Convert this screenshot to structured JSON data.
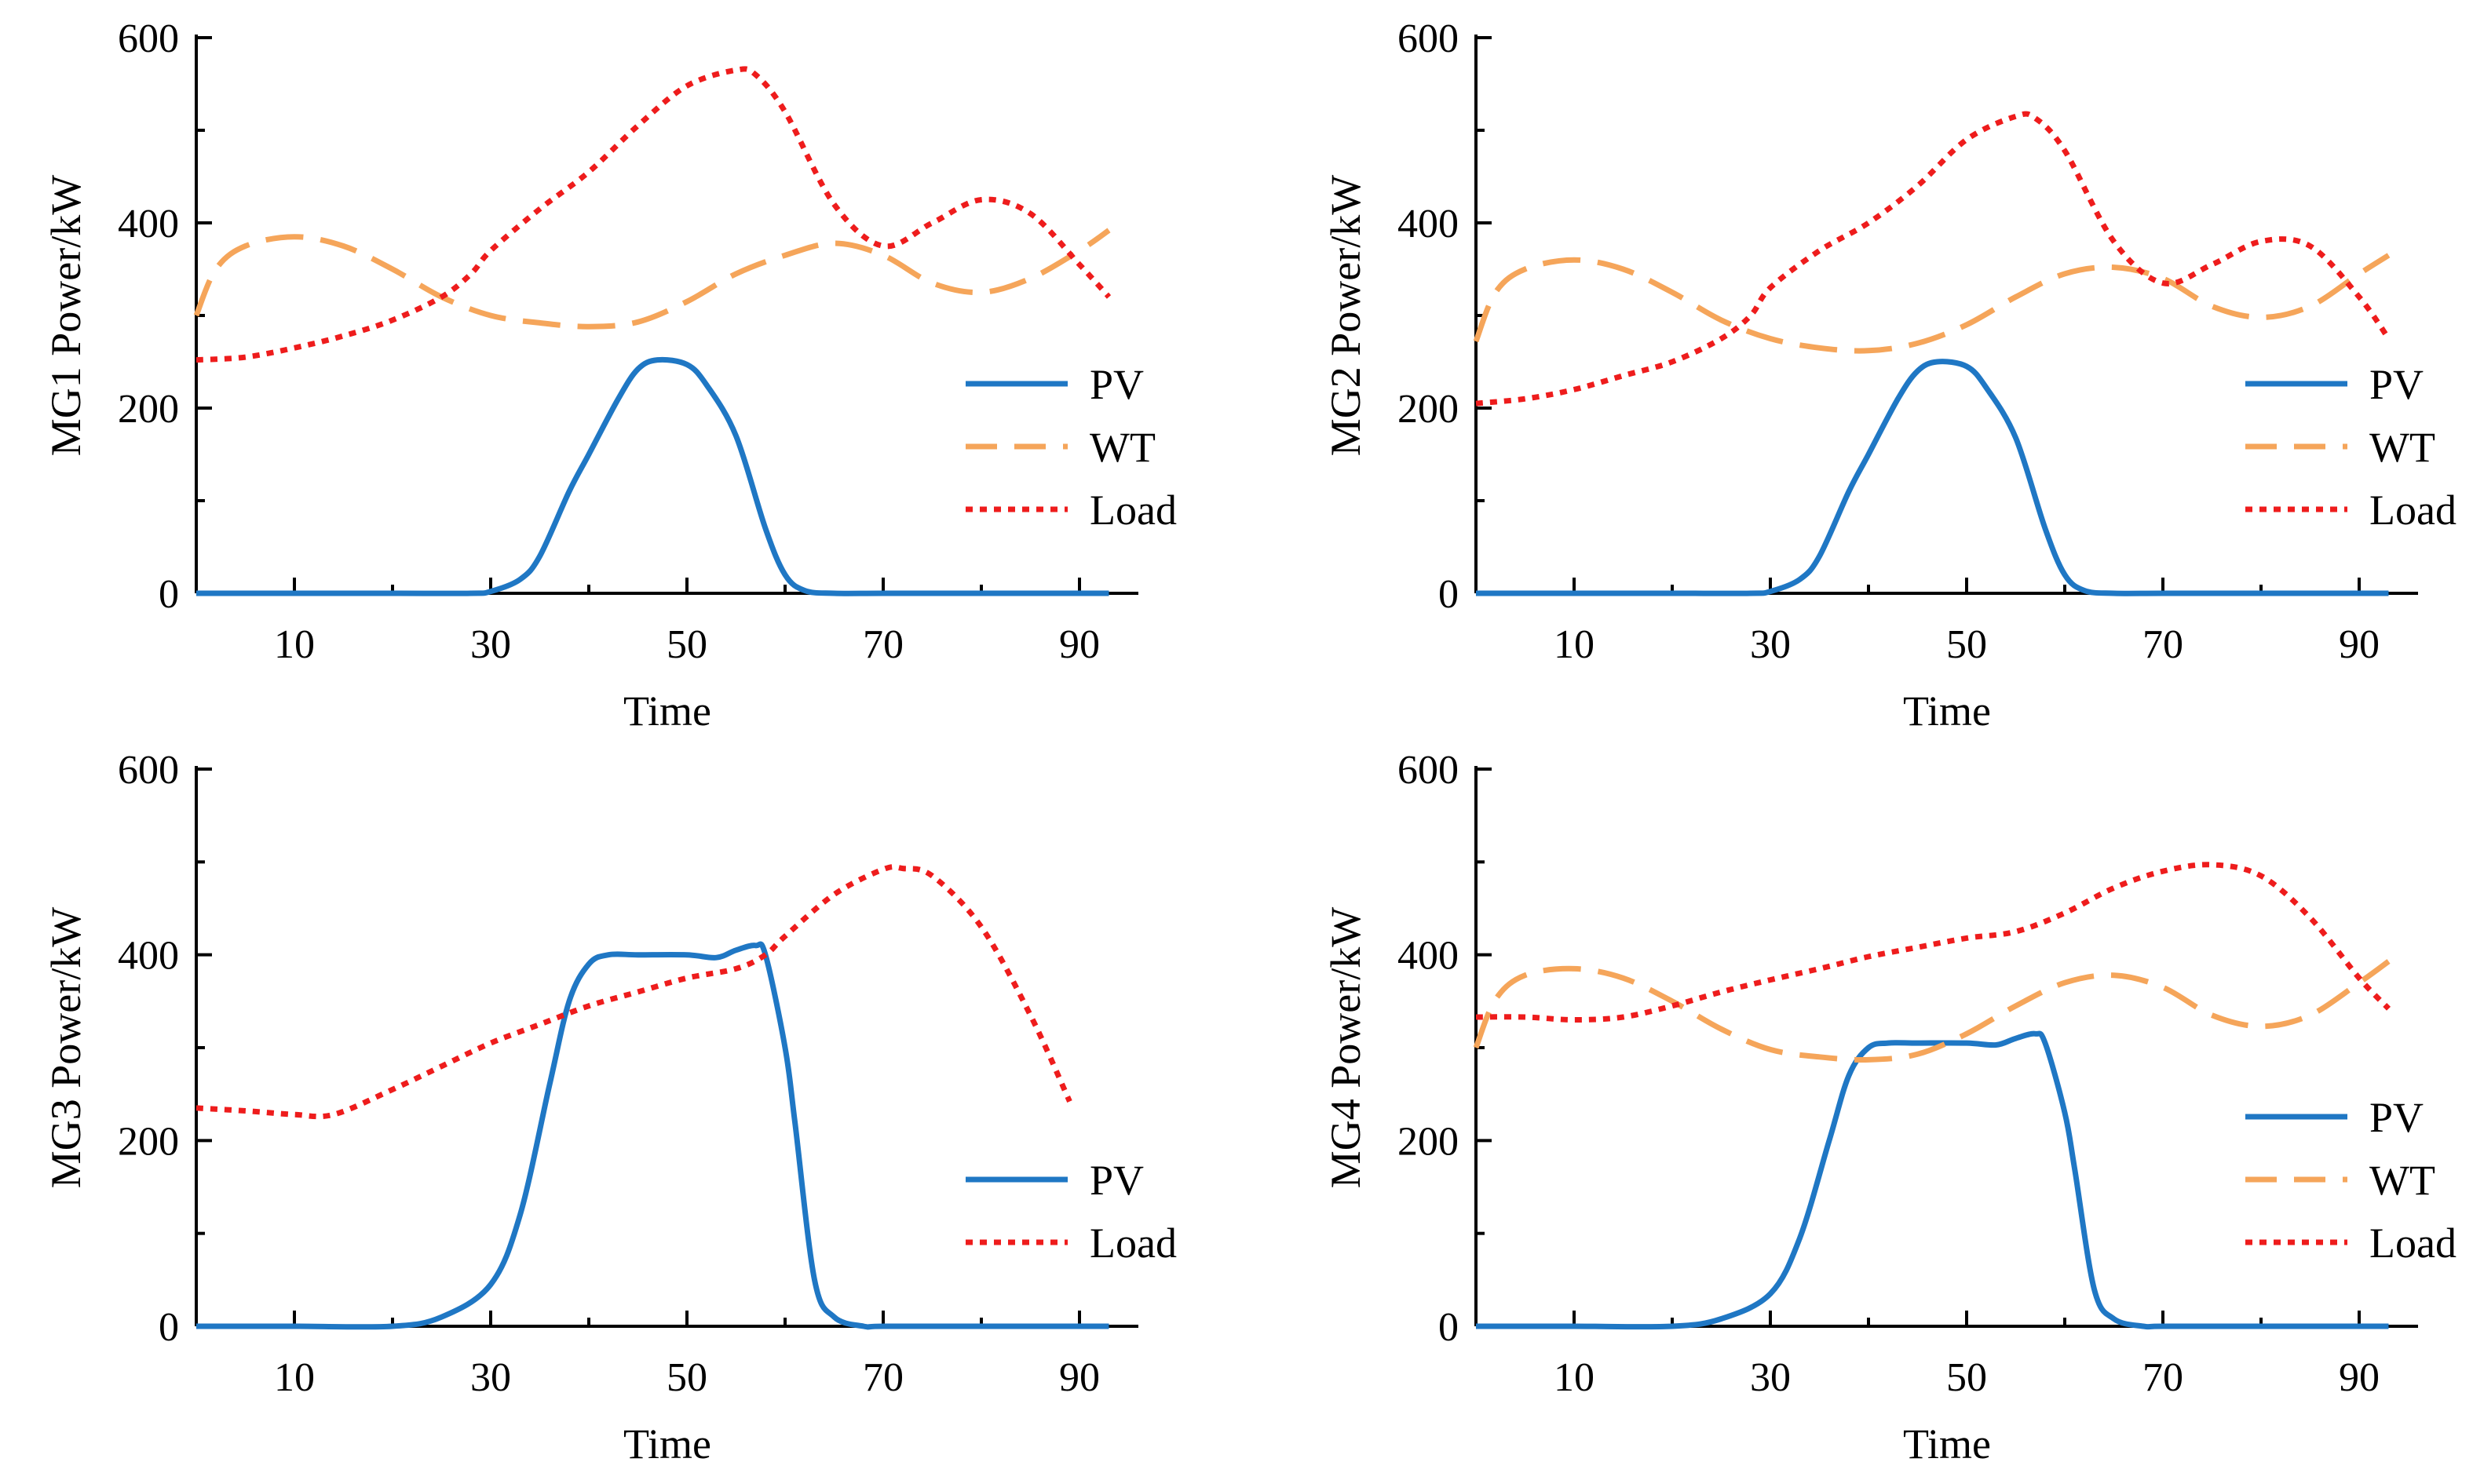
{
  "figure": {
    "panel_count": 4
  },
  "chart_data": [
    {
      "type": "line",
      "title": "",
      "xlabel": "Time",
      "ylabel": "MG1 Power/kW",
      "xlim": [
        0,
        96
      ],
      "ylim": [
        0,
        600
      ],
      "xticks": [
        10,
        30,
        50,
        70,
        90
      ],
      "yticks": [
        0,
        200,
        400,
        600
      ],
      "legend_position": "right",
      "series": [
        {
          "name": "PV",
          "color": "#1f77c4",
          "style": "solid",
          "x": [
            0,
            10,
            20,
            28,
            30,
            33,
            35,
            38,
            40,
            43,
            45,
            47,
            50,
            52,
            55,
            58,
            60,
            62,
            65,
            70,
            80,
            93
          ],
          "y": [
            0,
            0,
            0,
            0,
            2,
            15,
            40,
            110,
            150,
            210,
            242,
            252,
            247,
            225,
            170,
            70,
            20,
            3,
            0,
            0,
            0,
            0
          ]
        },
        {
          "name": "WT",
          "color": "#f5a55a",
          "style": "dash",
          "x": [
            0,
            2,
            5,
            10,
            15,
            20,
            25,
            30,
            35,
            40,
            45,
            50,
            55,
            60,
            65,
            70,
            75,
            80,
            85,
            90,
            93
          ],
          "y": [
            300,
            350,
            375,
            385,
            375,
            350,
            320,
            300,
            292,
            288,
            293,
            315,
            345,
            365,
            378,
            365,
            335,
            325,
            340,
            370,
            392
          ]
        },
        {
          "name": "Load",
          "color": "#ee1c1c",
          "style": "dot",
          "x": [
            0,
            5,
            10,
            15,
            20,
            25,
            28,
            30,
            35,
            40,
            45,
            50,
            55,
            57,
            60,
            65,
            70,
            75,
            80,
            85,
            90,
            93
          ],
          "y": [
            252,
            255,
            265,
            278,
            295,
            320,
            345,
            370,
            415,
            455,
            505,
            548,
            565,
            560,
            520,
            420,
            375,
            400,
            425,
            410,
            355,
            320
          ]
        }
      ]
    },
    {
      "type": "line",
      "title": "",
      "xlabel": "Time",
      "ylabel": "MG2 Power/kW",
      "xlim": [
        0,
        96
      ],
      "ylim": [
        0,
        600
      ],
      "xticks": [
        10,
        30,
        50,
        70,
        90
      ],
      "yticks": [
        0,
        200,
        400,
        600
      ],
      "legend_position": "right",
      "series": [
        {
          "name": "PV",
          "color": "#1f77c4",
          "style": "solid",
          "x": [
            0,
            10,
            20,
            28,
            30,
            33,
            35,
            38,
            40,
            43,
            45,
            47,
            50,
            52,
            55,
            58,
            60,
            62,
            65,
            70,
            80,
            93
          ],
          "y": [
            0,
            0,
            0,
            0,
            2,
            15,
            40,
            110,
            150,
            210,
            240,
            250,
            245,
            222,
            168,
            70,
            20,
            3,
            0,
            0,
            0,
            0
          ]
        },
        {
          "name": "WT",
          "color": "#f5a55a",
          "style": "dash",
          "x": [
            0,
            2,
            5,
            10,
            15,
            20,
            25,
            30,
            35,
            40,
            45,
            50,
            55,
            60,
            65,
            70,
            75,
            80,
            85,
            90,
            93
          ],
          "y": [
            272,
            325,
            350,
            360,
            350,
            325,
            295,
            275,
            265,
            262,
            270,
            290,
            320,
            345,
            352,
            340,
            310,
            298,
            310,
            345,
            365
          ]
        },
        {
          "name": "Load",
          "color": "#ee1c1c",
          "style": "dot",
          "x": [
            0,
            5,
            10,
            15,
            20,
            25,
            28,
            30,
            35,
            40,
            45,
            50,
            55,
            57,
            60,
            65,
            70,
            75,
            80,
            85,
            90,
            93
          ],
          "y": [
            205,
            210,
            220,
            235,
            250,
            275,
            300,
            330,
            370,
            400,
            440,
            490,
            515,
            513,
            478,
            380,
            335,
            355,
            380,
            375,
            320,
            275
          ]
        }
      ]
    },
    {
      "type": "line",
      "title": "",
      "xlabel": "Time",
      "ylabel": "MG3 Power/kW",
      "xlim": [
        0,
        96
      ],
      "ylim": [
        0,
        600
      ],
      "xticks": [
        10,
        30,
        50,
        70,
        90
      ],
      "yticks": [
        0,
        200,
        400,
        600
      ],
      "legend_position": "bottom-right",
      "series": [
        {
          "name": "PV",
          "color": "#1f77c4",
          "style": "solid",
          "x": [
            0,
            10,
            20,
            25,
            30,
            33,
            36,
            38,
            40,
            42,
            45,
            50,
            53,
            55,
            57,
            58,
            60,
            61,
            63,
            65,
            68,
            70,
            80,
            93
          ],
          "y": [
            0,
            0,
            0,
            10,
            45,
            120,
            260,
            350,
            390,
            400,
            400,
            400,
            397,
            405,
            410,
            400,
            300,
            220,
            50,
            10,
            0,
            0,
            0,
            0
          ]
        },
        {
          "name": "Load",
          "color": "#ee1c1c",
          "style": "dot",
          "x": [
            0,
            5,
            10,
            14,
            20,
            25,
            30,
            35,
            40,
            45,
            50,
            55,
            58,
            60,
            65,
            70,
            72,
            75,
            80,
            85,
            89
          ],
          "y": [
            235,
            232,
            228,
            228,
            255,
            280,
            305,
            325,
            345,
            360,
            375,
            385,
            400,
            420,
            465,
            492,
            493,
            485,
            430,
            335,
            242
          ]
        }
      ]
    },
    {
      "type": "line",
      "title": "",
      "xlabel": "Time",
      "ylabel": "MG4 Power/kW",
      "xlim": [
        0,
        96
      ],
      "ylim": [
        0,
        600
      ],
      "xticks": [
        10,
        30,
        50,
        70,
        90
      ],
      "yticks": [
        0,
        200,
        400,
        600
      ],
      "legend_position": "bottom-right",
      "series": [
        {
          "name": "PV",
          "color": "#1f77c4",
          "style": "solid",
          "x": [
            0,
            10,
            20,
            25,
            30,
            33,
            36,
            38,
            40,
            42,
            45,
            50,
            53,
            55,
            57,
            58,
            60,
            61,
            63,
            65,
            68,
            70,
            80,
            93
          ],
          "y": [
            0,
            0,
            0,
            8,
            35,
            95,
            200,
            270,
            300,
            305,
            305,
            305,
            303,
            310,
            315,
            305,
            230,
            170,
            40,
            8,
            0,
            0,
            0,
            0
          ]
        },
        {
          "name": "WT",
          "color": "#f5a55a",
          "style": "dash",
          "x": [
            0,
            2,
            5,
            10,
            15,
            20,
            25,
            30,
            35,
            40,
            45,
            50,
            55,
            60,
            65,
            70,
            75,
            80,
            85,
            90,
            93
          ],
          "y": [
            300,
            352,
            378,
            385,
            375,
            350,
            320,
            298,
            290,
            287,
            293,
            315,
            345,
            370,
            378,
            365,
            335,
            323,
            335,
            370,
            393
          ]
        },
        {
          "name": "Load",
          "color": "#ee1c1c",
          "style": "dot",
          "x": [
            0,
            5,
            10,
            15,
            20,
            25,
            30,
            35,
            40,
            45,
            50,
            55,
            60,
            65,
            70,
            75,
            80,
            85,
            90,
            93
          ],
          "y": [
            333,
            333,
            330,
            333,
            345,
            360,
            373,
            385,
            398,
            408,
            418,
            425,
            445,
            472,
            490,
            497,
            485,
            440,
            375,
            342
          ]
        }
      ]
    }
  ]
}
